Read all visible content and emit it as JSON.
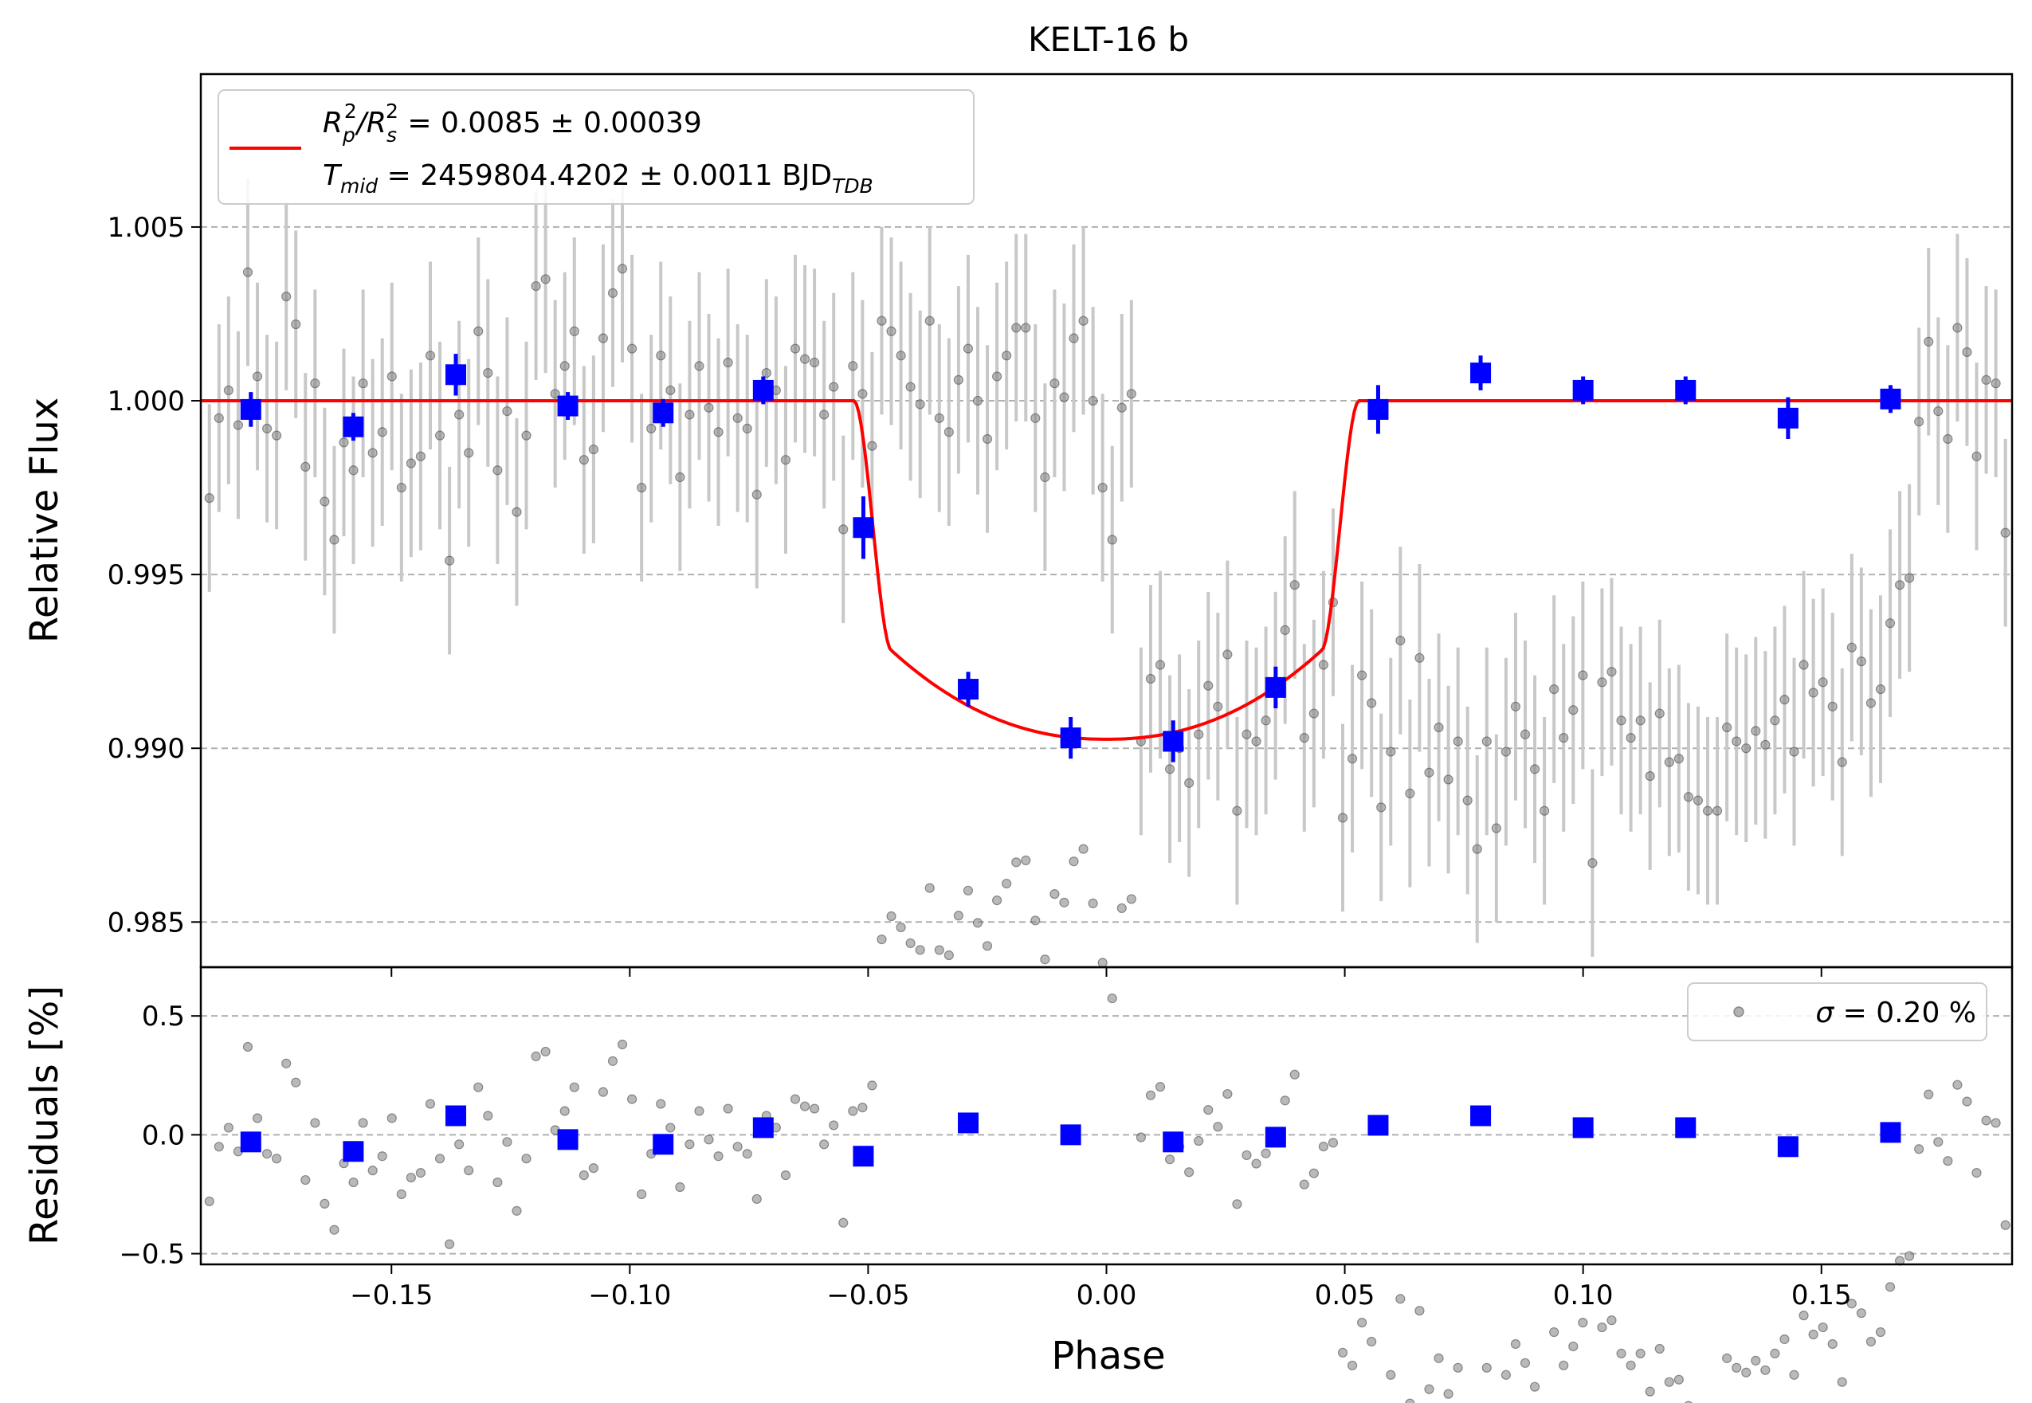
{
  "chart_data": [
    {
      "type": "scatter",
      "title": "KELT-16 b",
      "ylabel": "Relative Flux",
      "xlim": [
        -0.19,
        0.19
      ],
      "ylim": [
        0.9837,
        1.0094
      ],
      "yticks": [
        0.985,
        0.99,
        0.995,
        1.0,
        1.005
      ],
      "ytick_labels": [
        "0.985",
        "0.990",
        "0.995",
        "1.000",
        "1.005"
      ],
      "grid": "horizontal dashed",
      "legend_position": "top-left",
      "legend": {
        "line1": {
          "main": "R",
          "sub1": "p",
          "sup1": "2",
          "slash": "/R",
          "sub2": "s",
          "sup2": "2",
          "rest": " = 0.0085 ± 0.00039"
        },
        "line2": {
          "main": "T",
          "sub": "mid",
          "rest": " = 2459804.4202 ± 0.0011 BJD",
          "unit_sub": "TDB"
        }
      },
      "model": {
        "color": "#ff0000",
        "depth": 0.0085,
        "baseline": 1.0,
        "t1": -0.053,
        "t2": -0.045,
        "t3": 0.045,
        "t4": 0.053,
        "bottom_center": 0.99026
      },
      "raw_series": {
        "color": "#808080",
        "errbar_color": "#c8c8c8",
        "x_start": -0.1882,
        "x_step": 0.002015,
        "flux": [
          0.9972,
          0.9995,
          1.0003,
          0.9993,
          1.0037,
          1.0007,
          0.9992,
          0.999,
          1.003,
          1.0022,
          0.9981,
          1.0005,
          0.9971,
          0.996,
          0.9988,
          0.998,
          1.0005,
          0.9985,
          0.9991,
          1.0007,
          0.9975,
          0.9982,
          0.9984,
          1.0013,
          0.999,
          0.9954,
          0.9996,
          0.9985,
          1.002,
          1.0008,
          0.998,
          0.9997,
          0.9968,
          0.999,
          1.0033,
          1.0035,
          1.0002,
          1.001,
          1.002,
          0.9983,
          0.9986,
          1.0018,
          1.0031,
          1.0038,
          1.0015,
          0.9975,
          0.9992,
          1.0013,
          1.0003,
          0.9978,
          0.9996,
          1.001,
          0.9998,
          0.9991,
          1.0011,
          0.9995,
          0.9992,
          0.9973,
          1.0008,
          1.0003,
          0.9983,
          1.0015,
          1.0012,
          1.0011,
          0.9996,
          1.0004,
          0.9963,
          1.001,
          1.0002,
          0.9987,
          1.0023,
          1.002,
          1.0013,
          1.0004,
          0.9999,
          1.0023,
          0.9995,
          0.9991,
          1.0006,
          1.0015,
          1.0,
          0.9989,
          1.0007,
          1.0013,
          1.0021,
          1.0021,
          0.9995,
          0.9978,
          1.0005,
          1.0001,
          1.0018,
          1.0023,
          1.0,
          0.9975,
          0.996,
          0.9998,
          1.0002,
          0.9902,
          0.992,
          0.9924,
          0.9894,
          0.99,
          0.989,
          0.9904,
          0.9918,
          0.9912,
          0.9927,
          0.9882,
          0.9904,
          0.9902,
          0.9908,
          0.9918,
          0.9934,
          0.9947,
          0.9903,
          0.991,
          0.9924,
          0.9942,
          0.988,
          0.9897,
          0.9921,
          0.9913,
          0.9883,
          0.9899,
          0.9931,
          0.9887,
          0.9926,
          0.9893,
          0.9906,
          0.9891,
          0.9902,
          0.9885,
          0.9871,
          0.9902,
          0.9877,
          0.9899,
          0.9912,
          0.9904,
          0.9894,
          0.9882,
          0.9917,
          0.9903,
          0.9911,
          0.9921,
          0.9867,
          0.9919,
          0.9922,
          0.9908,
          0.9903,
          0.9908,
          0.9892,
          0.991,
          0.9896,
          0.9897,
          0.9886,
          0.9885,
          0.9882,
          0.9882,
          0.9906,
          0.9902,
          0.99,
          0.9905,
          0.9901,
          0.9908,
          0.9914,
          0.9899,
          0.9924,
          0.9916,
          0.9919,
          0.9912,
          0.9896,
          0.9929,
          0.9925,
          0.9913,
          0.9917,
          0.9936,
          0.9947,
          0.9949,
          0.9994,
          1.0017,
          0.9997,
          0.9989,
          1.0021,
          1.0014,
          0.9984,
          1.0006,
          1.0005,
          0.9962,
          1.0001,
          1.0,
          1.0001,
          1.004,
          1.0019,
          0.9996,
          1.0005,
          0.9999,
          1.0015,
          0.9993,
          1.0063,
          1.0016,
          1.0008,
          0.9983,
          1.0013,
          0.9983,
          1.0008,
          0.9986,
          1.0035,
          1.0011,
          1.0005,
          1.0,
          0.999,
          0.9975,
          1.0012,
          0.9999,
          1.0042,
          1.0012,
          1.0012,
          1.0012,
          0.9997,
          0.9988,
          0.9996,
          1.0004,
          0.9974,
          1.0002,
          1.0005,
          0.9986,
          0.9995,
          1.0029,
          1.0006,
          0.9997,
          1.0021,
          1.0002,
          1.0017,
          0.9988,
          1.0004,
          0.9999,
          1.0028,
          1.0002,
          1.0,
          1.0021,
          1.0012,
          0.9992,
          0.9996,
          0.997,
          0.9983,
          1.0015,
          1.0,
          1.0003,
          1.0028,
          1.0004,
          0.9998,
          1.0019,
          1.0012,
          1.0004,
          0.9986,
          0.9997,
          1.0004,
          0.9982,
          0.9987,
          1.0004,
          0.999,
          0.9986,
          1.0012,
          1.0021,
          1.0003,
          1.0026,
          1.003,
          1.0018,
          0.9997,
          1.0,
          0.9987,
          0.9988,
          0.9999,
          1.0013,
          1.0016,
          1.002,
          0.9955,
          0.9976,
          0.9961,
          0.9997,
          1.0,
          0.9984,
          1.0003,
          1.0024,
          0.9994,
          0.9999,
          1.0009,
          0.9984,
          0.9978,
          0.999,
          1.0012,
          0.9978,
          0.9969,
          0.9979,
          0.9994,
          0.9983,
          0.9988,
          0.9986,
          0.9985,
          0.9984,
          0.9992,
          0.999,
          0.9996,
          1.0023,
          0.9962,
          0.9988,
          0.9986,
          0.9986,
          1.0026,
          1.0004,
          1.0017,
          0.9983,
          1.0001,
          1.0023
        ],
        "flux_error": 0.0027
      },
      "binned_series": {
        "color": "#0000ff",
        "x": [
          -0.1795,
          -0.158,
          -0.1365,
          -0.113,
          -0.093,
          -0.072,
          -0.051,
          -0.029,
          -0.0075,
          0.014,
          0.0355,
          0.057,
          0.0785,
          0.1,
          0.1215,
          0.143,
          0.1645
        ],
        "flux": [
          0.99975,
          0.99925,
          1.00075,
          0.99985,
          0.99965,
          1.0003,
          0.99635,
          0.9917,
          0.9903,
          0.9902,
          0.99175,
          0.99975,
          1.0008,
          1.0003,
          1.0003,
          0.9995,
          1.00005
        ],
        "flux_error": [
          0.0005,
          0.0004,
          0.0006,
          0.0004,
          0.0004,
          0.0004,
          0.0009,
          0.0005,
          0.0006,
          0.0006,
          0.0006,
          0.0007,
          0.0005,
          0.0004,
          0.0004,
          0.0006,
          0.0004
        ]
      }
    },
    {
      "type": "scatter",
      "xlabel": "Phase",
      "ylabel": "Residuals [%]",
      "xlim": [
        -0.19,
        0.19
      ],
      "ylim": [
        -0.545,
        0.705
      ],
      "xticks": [
        -0.15,
        -0.1,
        -0.05,
        0.0,
        0.05,
        0.1,
        0.15
      ],
      "xtick_labels": [
        "−0.15",
        "−0.10",
        "−0.05",
        "0.00",
        "0.05",
        "0.10",
        "0.15"
      ],
      "yticks": [
        -0.5,
        0.0,
        0.5
      ],
      "ytick_labels": [
        "−0.5",
        "0.0",
        "0.5"
      ],
      "grid": "horizontal dashed",
      "legend_position": "top-right",
      "legend": {
        "sigma_symbol": "σ",
        "label": " = 0.20 %"
      },
      "binned_residuals": [
        -0.03,
        -0.07,
        0.08,
        -0.02,
        -0.04,
        0.03,
        -0.09,
        0.05,
        0.0,
        -0.03,
        -0.01,
        0.04,
        0.08,
        0.03,
        0.03,
        -0.05,
        0.01
      ]
    }
  ]
}
